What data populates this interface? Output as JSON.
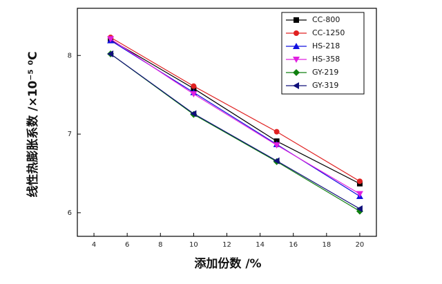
{
  "chart_data": {
    "type": "line",
    "x_label": "添加份数 /%",
    "y_label": "线性热膨胀系数 /×10⁻⁵ ⁰C",
    "x": [
      5,
      10,
      15,
      20
    ],
    "series": [
      {
        "name": "CC-800",
        "color": "#000000",
        "marker": "square",
        "values": [
          8.2,
          7.58,
          6.91,
          6.37
        ]
      },
      {
        "name": "CC-1250",
        "color": "#e02020",
        "marker": "circle",
        "values": [
          8.23,
          7.61,
          7.03,
          6.4
        ]
      },
      {
        "name": "HS-218",
        "color": "#1010e0",
        "marker": "triangle-up",
        "values": [
          8.19,
          7.53,
          6.87,
          6.21
        ]
      },
      {
        "name": "HS-358",
        "color": "#e020e0",
        "marker": "triangle-down",
        "values": [
          8.21,
          7.51,
          6.86,
          6.24
        ]
      },
      {
        "name": "GY-219",
        "color": "#108010",
        "marker": "diamond",
        "values": [
          8.02,
          7.25,
          6.65,
          6.02
        ]
      },
      {
        "name": "GY-319",
        "color": "#10107a",
        "marker": "triangle-left",
        "values": [
          8.02,
          7.26,
          6.66,
          6.05
        ]
      }
    ],
    "xlim": [
      3,
      21
    ],
    "ylim": [
      5.7,
      8.6
    ],
    "xticks": [
      4,
      6,
      8,
      10,
      12,
      14,
      16,
      18,
      20
    ],
    "yticks": [
      6,
      7,
      8
    ],
    "legend": "top-right",
    "grid": false
  }
}
